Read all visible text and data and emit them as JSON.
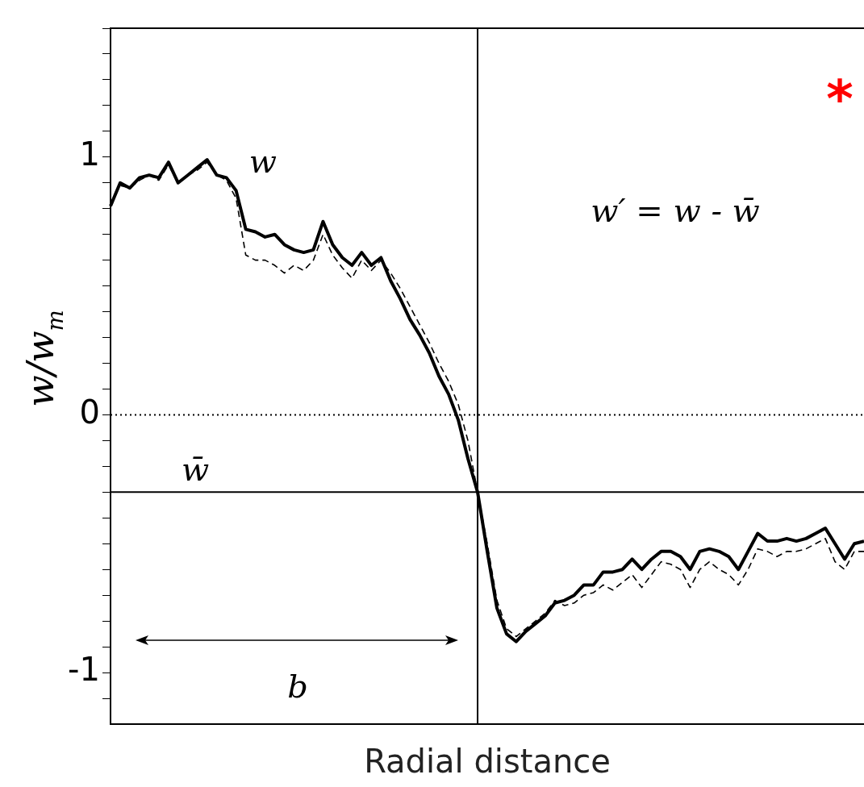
{
  "chart_data": {
    "type": "line",
    "xlabel": "Radial distance",
    "ylabel": "w/w$_{m}$",
    "categories": [
      null,
      null,
      null,
      null,
      null,
      null,
      null,
      null,
      null,
      null,
      null,
      null,
      null,
      null,
      null,
      null,
      null,
      null,
      null,
      null,
      null,
      null,
      null,
      null,
      null,
      null,
      null,
      null,
      null,
      null,
      null,
      null,
      null,
      null,
      null,
      null,
      null,
      null,
      null,
      null,
      null,
      null,
      null,
      null,
      null,
      null,
      null,
      null,
      null,
      null,
      null,
      null,
      null,
      null,
      null,
      null,
      null,
      null,
      null,
      null,
      null,
      null,
      null,
      null,
      null,
      null,
      null,
      null,
      null,
      null,
      null,
      null,
      null,
      null,
      null,
      null,
      null,
      null,
      null
    ],
    "series": [
      {
        "name": "w",
        "color": "#000000",
        "line_style": "solid",
        "values": [
          0.81,
          0.9,
          0.88,
          0.92,
          0.93,
          0.92,
          0.98,
          0.9,
          0.93,
          0.96,
          0.99,
          0.93,
          0.92,
          0.87,
          0.72,
          0.71,
          0.69,
          0.7,
          0.66,
          0.64,
          0.63,
          0.64,
          0.75,
          0.66,
          0.61,
          0.58,
          0.63,
          0.58,
          0.61,
          0.52,
          0.45,
          0.37,
          0.31,
          0.24,
          0.15,
          0.08,
          -0.02,
          -0.17,
          -0.3,
          -0.53,
          -0.75,
          -0.85,
          -0.88,
          -0.84,
          -0.81,
          -0.78,
          -0.73,
          -0.72,
          -0.7,
          -0.66,
          -0.66,
          -0.61,
          -0.61,
          -0.6,
          -0.56,
          -0.6,
          -0.56,
          -0.53,
          -0.53,
          -0.55,
          -0.6,
          -0.53,
          -0.52,
          -0.53,
          -0.55,
          -0.6,
          -0.53,
          -0.46,
          -0.49,
          -0.49,
          -0.48,
          -0.49,
          -0.48,
          -0.46,
          -0.44,
          -0.5,
          -0.56,
          -0.5,
          -0.49
        ]
      },
      {
        "color": "#000000",
        "line_style": "dashed",
        "values": [
          0.82,
          0.89,
          0.88,
          0.91,
          0.93,
          0.91,
          0.97,
          0.9,
          0.93,
          0.95,
          0.98,
          0.93,
          0.91,
          0.84,
          0.62,
          0.6,
          0.6,
          0.58,
          0.55,
          0.58,
          0.56,
          0.6,
          0.7,
          0.62,
          0.57,
          0.53,
          0.6,
          0.56,
          0.6,
          0.55,
          0.49,
          0.42,
          0.35,
          0.28,
          0.2,
          0.13,
          0.04,
          -0.1,
          -0.3,
          -0.5,
          -0.72,
          -0.83,
          -0.86,
          -0.83,
          -0.8,
          -0.77,
          -0.72,
          -0.74,
          -0.73,
          -0.7,
          -0.69,
          -0.66,
          -0.68,
          -0.65,
          -0.62,
          -0.67,
          -0.62,
          -0.57,
          -0.58,
          -0.6,
          -0.67,
          -0.6,
          -0.57,
          -0.6,
          -0.62,
          -0.66,
          -0.6,
          -0.52,
          -0.53,
          -0.55,
          -0.53,
          -0.53,
          -0.52,
          -0.5,
          -0.48,
          -0.57,
          -0.6,
          -0.53,
          -0.53
        ]
      }
    ],
    "ylim": [
      -1.2,
      1.5
    ],
    "yticks": [
      {
        "value": -1.1,
        "label": null
      },
      {
        "value": -1,
        "label": "-1"
      },
      {
        "value": -0.9,
        "label": null
      },
      {
        "value": -0.8,
        "label": null
      },
      {
        "value": -0.7,
        "label": null
      },
      {
        "value": -0.6,
        "label": null
      },
      {
        "value": -0.5,
        "label": null
      },
      {
        "value": -0.4,
        "label": null
      },
      {
        "value": -0.3,
        "label": null
      },
      {
        "value": -0.2,
        "label": null
      },
      {
        "value": -0.1,
        "label": null
      },
      {
        "value": 0,
        "label": "0"
      },
      {
        "value": 0.1,
        "label": null
      },
      {
        "value": 0.2,
        "label": null
      },
      {
        "value": 0.3,
        "label": null
      },
      {
        "value": 0.4,
        "label": null
      },
      {
        "value": 0.5,
        "label": null
      },
      {
        "value": 0.6,
        "label": null
      },
      {
        "value": 0.7,
        "label": null
      },
      {
        "value": 0.8,
        "label": null
      },
      {
        "value": 0.9,
        "label": null
      },
      {
        "value": 1,
        "label": "1"
      },
      {
        "value": 1.1,
        "label": null
      },
      {
        "value": 1.2,
        "label": null
      },
      {
        "value": 1.3,
        "label": null
      },
      {
        "value": 1.4,
        "label": null
      },
      {
        "value": 1.5,
        "label": null
      }
    ],
    "ref_lines": [
      {
        "axis": "y",
        "value": 0,
        "line_style": "dotted"
      },
      {
        "axis": "y",
        "value": -0.3,
        "label": "w̄",
        "line_style": "solid"
      }
    ],
    "annotations": [
      "w′ = w - w̄",
      "b",
      "*"
    ],
    "tick_labels": "y",
    "grid": false,
    "legend": false,
    "marker": "none"
  }
}
